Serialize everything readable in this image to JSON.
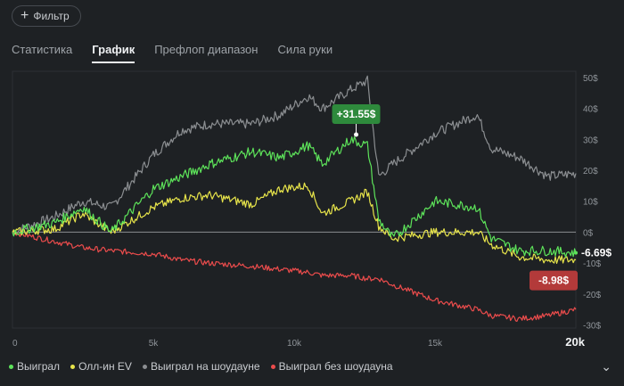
{
  "toolbar": {
    "filter_label": "Фильтр",
    "filter_icon": "plus-icon"
  },
  "tabs": [
    {
      "label": "Статистика",
      "active": false
    },
    {
      "label": "График",
      "active": true
    },
    {
      "label": "Префлоп диапазон",
      "active": false
    },
    {
      "label": "Сила руки",
      "active": false
    }
  ],
  "chart_data": {
    "type": "line",
    "x_ticks": [
      "0",
      "5k",
      "10k",
      "15k",
      "20k"
    ],
    "y_ticks": [
      "50$",
      "40$",
      "30$",
      "20$",
      "10$",
      "0$",
      "-10$",
      "-20$",
      "-30$"
    ],
    "xlim": [
      0,
      20000
    ],
    "ylim": [
      -31,
      52
    ],
    "grid": false,
    "zero_line": true,
    "legend_position": "bottom-left",
    "callouts": [
      {
        "label": "+31.55$",
        "x": 12200,
        "y": 31.55,
        "color": "#2e8a3c"
      },
      {
        "label": "-8.98$",
        "x": 20000,
        "y": -8.98,
        "color": "#b33a3a"
      }
    ],
    "end_label": {
      "label": "-6.69$",
      "y": -6.69
    },
    "series": [
      {
        "name": "Выиграл",
        "color": "#5de35a",
        "x": [
          0,
          1500,
          2500,
          3500,
          5000,
          6000,
          7000,
          8500,
          9500,
          10500,
          11000,
          12000,
          12600,
          13000,
          13500,
          15000,
          16500,
          17000,
          18000,
          19000,
          20000
        ],
        "y": [
          0,
          3,
          8,
          0,
          14,
          18,
          22,
          26,
          24,
          28,
          22,
          30,
          28,
          4,
          -2,
          10,
          8,
          -2,
          -6,
          -6,
          -6.69
        ]
      },
      {
        "name": "Олл-ин EV",
        "color": "#e7e44a",
        "x": [
          0,
          1500,
          2500,
          3500,
          5000,
          6000,
          7000,
          8500,
          9500,
          10500,
          11000,
          12000,
          12600,
          13000,
          13500,
          15000,
          16500,
          17000,
          18000,
          19000,
          20000
        ],
        "y": [
          0,
          1,
          6,
          0,
          8,
          11,
          12,
          9,
          14,
          15,
          6,
          10,
          13,
          2,
          -2,
          0,
          0,
          -4,
          -8,
          -9,
          -8.98
        ]
      },
      {
        "name": "Выиграл на шоудауне",
        "color": "#8b8e91",
        "x": [
          0,
          1500,
          2500,
          3500,
          5000,
          6000,
          7000,
          8500,
          9500,
          10500,
          11000,
          12000,
          12600,
          13000,
          13500,
          15000,
          16500,
          17000,
          18000,
          19000,
          20000
        ],
        "y": [
          0,
          5,
          10,
          8,
          25,
          33,
          35,
          35,
          38,
          44,
          40,
          46,
          49,
          18,
          22,
          32,
          38,
          27,
          24,
          18,
          19
        ]
      },
      {
        "name": "Выиграл без шоудауна",
        "color": "#ec4c4c",
        "x": [
          0,
          1500,
          2500,
          3500,
          5000,
          6000,
          7000,
          8500,
          9500,
          10500,
          11000,
          12000,
          12600,
          13000,
          13500,
          15000,
          16500,
          17000,
          18000,
          19000,
          20000
        ],
        "y": [
          0,
          -3,
          -5,
          -6,
          -7,
          -9,
          -10,
          -11,
          -12,
          -13,
          -14,
          -14,
          -15,
          -15,
          -17,
          -22,
          -25,
          -27,
          -28,
          -27,
          -25
        ]
      }
    ]
  }
}
